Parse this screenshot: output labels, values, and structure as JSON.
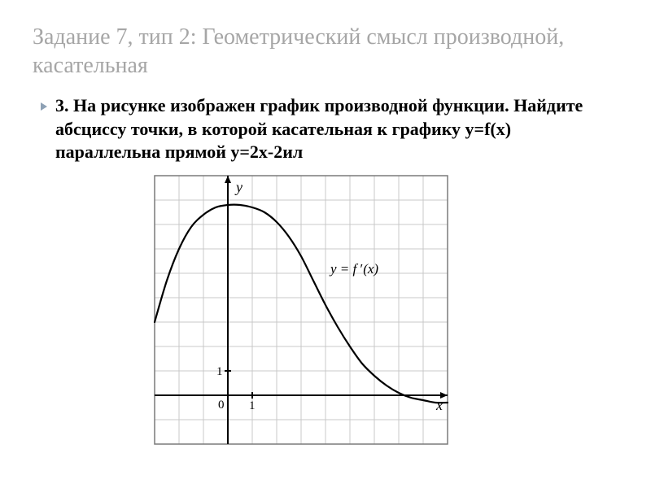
{
  "title": "Задание 7, тип 2: Геометрический смысл производной, касательная",
  "problem": {
    "number": "3.",
    "text": "На рисунке изображен график производной функции. Найдите абсциссу точки, в которой касательная к графику y=f(x) параллельна прямой y=2x-2ил"
  },
  "chart": {
    "type": "line",
    "grid": {
      "cols": 12,
      "rows": 11,
      "cell": 30,
      "origin_col": 3,
      "origin_row": 9,
      "grid_color": "#c9c9c9",
      "border_color": "#7a7a7a",
      "background_color": "#ffffff"
    },
    "axes": {
      "x_label": "x",
      "y_label": "y",
      "tick_label_one_x": "1",
      "tick_label_one_y": "1",
      "origin_label": "0",
      "axis_color": "#000000",
      "label_fontsize": 18,
      "tick_fontsize": 15
    },
    "curve": {
      "color": "#000000",
      "width": 2.2,
      "label": "y = f '(x)",
      "label_fontsize": 17,
      "points": [
        [
          -3.0,
          3.0
        ],
        [
          -2.5,
          4.7
        ],
        [
          -2.0,
          6.0
        ],
        [
          -1.5,
          6.9
        ],
        [
          -1.0,
          7.4
        ],
        [
          -0.5,
          7.7
        ],
        [
          0.0,
          7.8
        ],
        [
          0.5,
          7.8
        ],
        [
          1.0,
          7.7
        ],
        [
          1.5,
          7.5
        ],
        [
          2.0,
          7.1
        ],
        [
          2.5,
          6.5
        ],
        [
          3.0,
          5.7
        ],
        [
          3.5,
          4.7
        ],
        [
          4.0,
          3.7
        ],
        [
          4.5,
          2.8
        ],
        [
          5.0,
          2.0
        ],
        [
          5.5,
          1.3
        ],
        [
          6.0,
          0.8
        ],
        [
          6.5,
          0.4
        ],
        [
          7.0,
          0.1
        ],
        [
          7.5,
          -0.1
        ],
        [
          8.0,
          -0.2
        ],
        [
          8.5,
          -0.3
        ],
        [
          9.0,
          -0.3
        ]
      ]
    }
  }
}
